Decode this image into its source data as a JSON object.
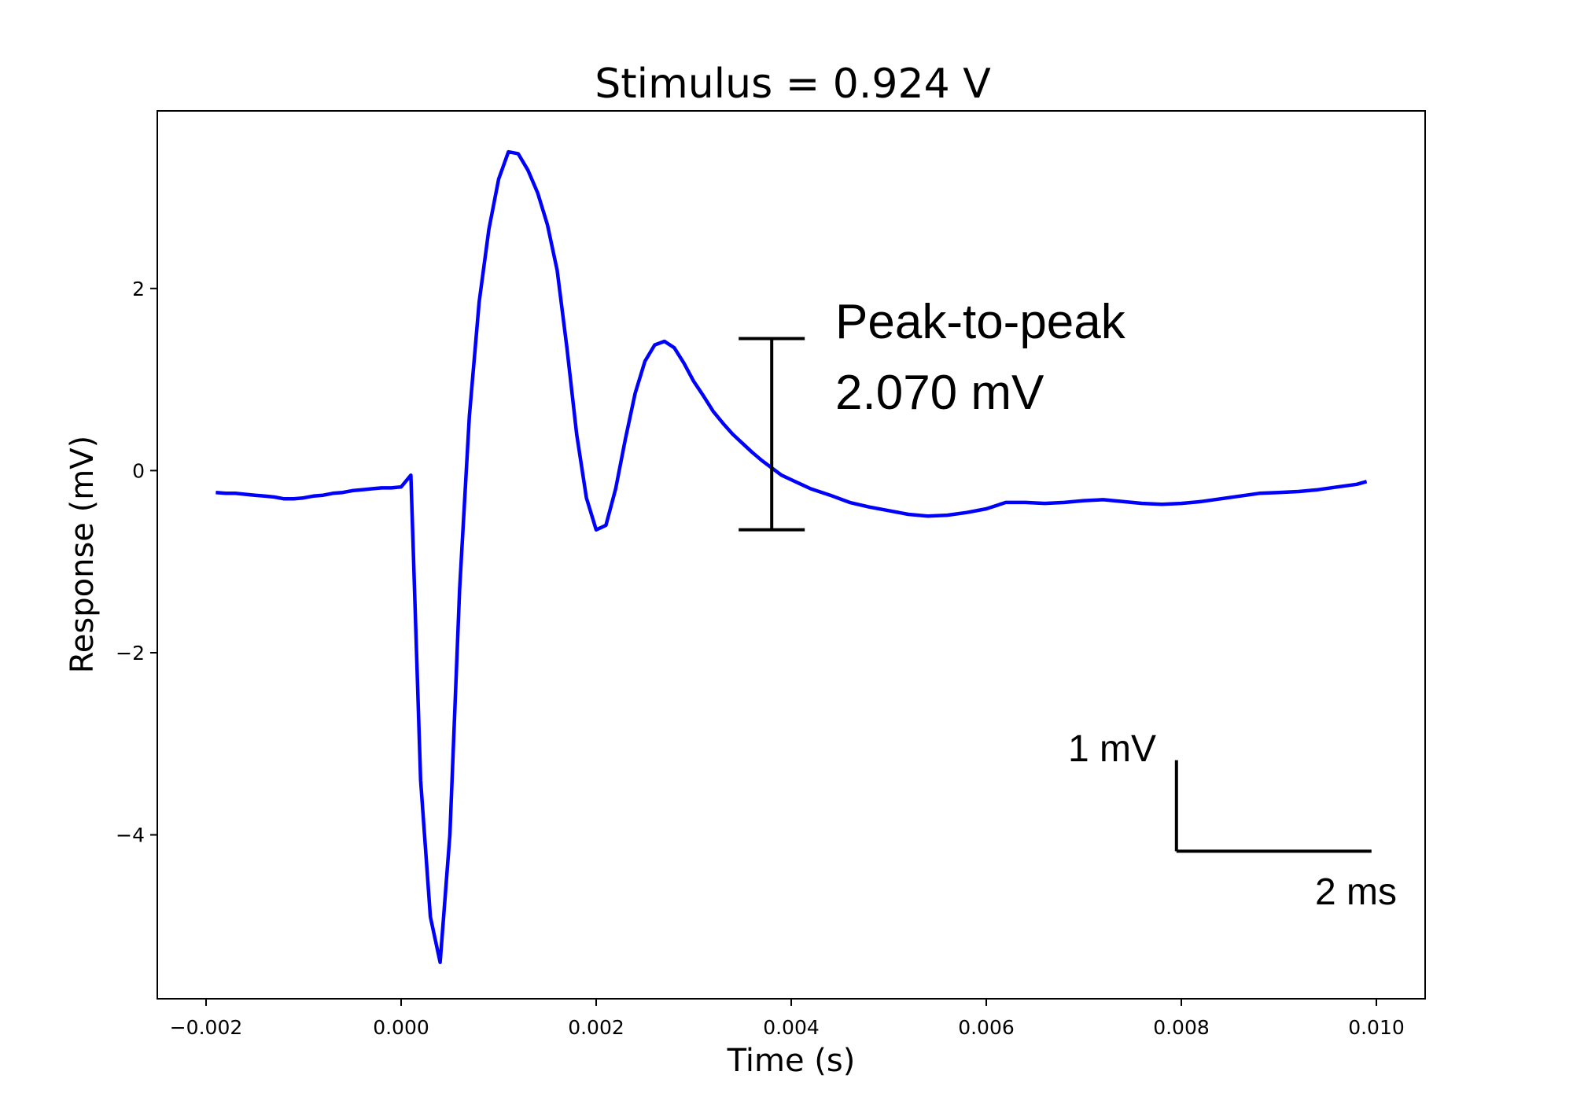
{
  "chart_data": {
    "type": "line",
    "title": "Stimulus = 0.924 V",
    "xlabel": "Time (s)",
    "ylabel": "Response (mV)",
    "xlim": [
      -0.0025,
      0.0105
    ],
    "ylim": [
      -5.8,
      3.95
    ],
    "xticks": [
      -0.002,
      0.0,
      0.002,
      0.004,
      0.006,
      0.008,
      0.01
    ],
    "xtick_labels": [
      "−0.002",
      "0.000",
      "0.002",
      "0.004",
      "0.006",
      "0.008",
      "0.010"
    ],
    "yticks": [
      -4,
      -2,
      0,
      2
    ],
    "ytick_labels": [
      "−4",
      "−2",
      "0",
      "2"
    ],
    "grid": false,
    "series_color": "#0000ff",
    "series": [
      {
        "x": [
          -0.0019,
          -0.0018,
          -0.0017,
          -0.0016,
          -0.0015,
          -0.0014,
          -0.0013,
          -0.0012,
          -0.0011,
          -0.001,
          -0.0009,
          -0.0008,
          -0.0007,
          -0.0006,
          -0.0005,
          -0.0004,
          -0.0003,
          -0.0002,
          -0.0001,
          0.0,
          0.0001,
          0.0002,
          0.0003,
          0.0004,
          0.0005,
          0.0006,
          0.0007,
          0.0008,
          0.0009,
          0.001,
          0.0011,
          0.0012,
          0.0013,
          0.0014,
          0.0015,
          0.0016,
          0.0017,
          0.0018,
          0.0019,
          0.002,
          0.0021,
          0.0022,
          0.0023,
          0.0024,
          0.0025,
          0.0026,
          0.0027,
          0.0028,
          0.0029,
          0.003,
          0.0031,
          0.0032,
          0.0033,
          0.0034,
          0.0035,
          0.0036,
          0.0037,
          0.0038,
          0.0039,
          0.004,
          0.0042,
          0.0044,
          0.0046,
          0.0048,
          0.005,
          0.0052,
          0.0054,
          0.0056,
          0.0058,
          0.006,
          0.0062,
          0.0064,
          0.0066,
          0.0068,
          0.007,
          0.0072,
          0.0074,
          0.0076,
          0.0078,
          0.008,
          0.0082,
          0.0084,
          0.0086,
          0.0088,
          0.009,
          0.0092,
          0.0094,
          0.0096,
          0.0098,
          0.0099
        ],
        "y": [
          -0.24,
          -0.25,
          -0.25,
          -0.26,
          -0.27,
          -0.28,
          -0.29,
          -0.31,
          -0.31,
          -0.3,
          -0.28,
          -0.27,
          -0.25,
          -0.24,
          -0.22,
          -0.21,
          -0.2,
          -0.19,
          -0.19,
          -0.18,
          -0.05,
          -3.4,
          -4.9,
          -5.4,
          -4.0,
          -1.3,
          0.6,
          1.85,
          2.65,
          3.2,
          3.5,
          3.48,
          3.3,
          3.05,
          2.7,
          2.2,
          1.35,
          0.4,
          -0.3,
          -0.65,
          -0.6,
          -0.2,
          0.35,
          0.85,
          1.2,
          1.38,
          1.42,
          1.35,
          1.18,
          0.98,
          0.82,
          0.65,
          0.52,
          0.4,
          0.3,
          0.2,
          0.11,
          0.03,
          -0.05,
          -0.1,
          -0.2,
          -0.27,
          -0.35,
          -0.4,
          -0.44,
          -0.48,
          -0.5,
          -0.49,
          -0.46,
          -0.42,
          -0.35,
          -0.35,
          -0.36,
          -0.35,
          -0.33,
          -0.32,
          -0.34,
          -0.36,
          -0.37,
          -0.36,
          -0.34,
          -0.31,
          -0.28,
          -0.25,
          -0.24,
          -0.23,
          -0.21,
          -0.18,
          -0.15,
          -0.12
        ]
      }
    ],
    "annotations": {
      "peak_line1": "Peak-to-peak",
      "peak_line2": "2.070 mV",
      "peak_bar_range": [
        -0.65,
        1.45
      ],
      "peak_bar_x": 0.0038,
      "scale_v_label": "1 mV",
      "scale_h_label": "2 ms",
      "scale_origin": [
        0.00795,
        -4.18
      ],
      "scale_v_length_mV": 1.0,
      "scale_h_length_s": 0.002
    }
  }
}
